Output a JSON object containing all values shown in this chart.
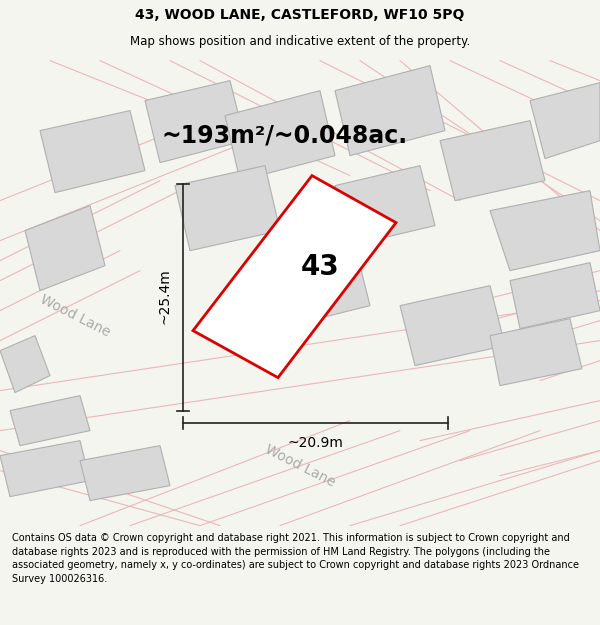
{
  "title": "43, WOOD LANE, CASTLEFORD, WF10 5PQ",
  "subtitle": "Map shows position and indicative extent of the property.",
  "area_text": "~193m²/~0.048ac.",
  "label_number": "43",
  "dim_width": "~20.9m",
  "dim_height": "~25.4m",
  "footer": "Contains OS data © Crown copyright and database right 2021. This information is subject to Crown copyright and database rights 2023 and is reproduced with the permission of HM Land Registry. The polygons (including the associated geometry, namely x, y co-ordinates) are subject to Crown copyright and database rights 2023 Ordnance Survey 100026316.",
  "bg_color": "#f5f5f0",
  "map_bg": "#f8f8f8",
  "road_line_color": "#e8b8b8",
  "road_line_lw": 0.8,
  "building_fill": "#d8d8d8",
  "building_edge": "#b0b0b0",
  "building_lw": 0.8,
  "plot_fill": "#ffffff",
  "plot_edge": "#dd0000",
  "plot_lw": 2.0,
  "title_fontsize": 10,
  "subtitle_fontsize": 8.5,
  "footer_fontsize": 7.0,
  "area_fontsize": 17,
  "label_fontsize": 20,
  "dim_fontsize": 10,
  "road_label_fontsize": 10,
  "road_label_color": "#aaaaaa",
  "dim_line_color": "#222222",
  "dim_lw": 1.2
}
